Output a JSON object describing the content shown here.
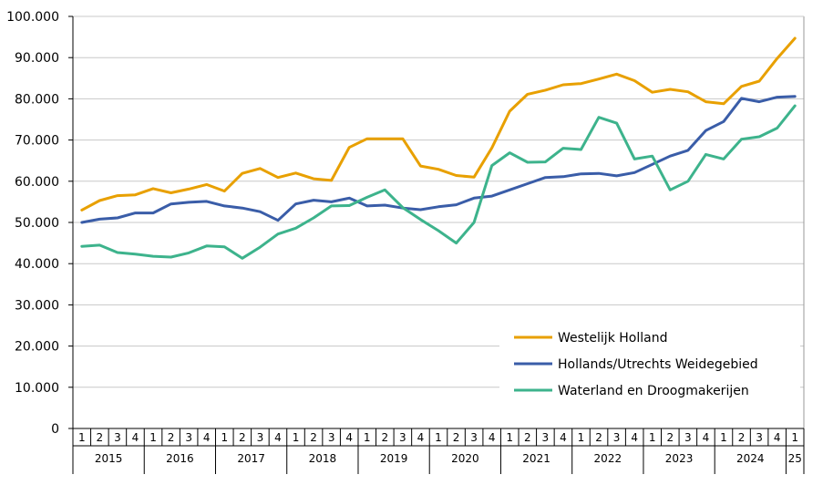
{
  "chart_data": {
    "type": "line",
    "title": "",
    "xlabel": "",
    "ylabel": "",
    "ylim": [
      0,
      100000
    ],
    "yticks": [
      "0",
      "10.000",
      "20.000",
      "30.000",
      "40.000",
      "50.000",
      "60.000",
      "70.000",
      "80.000",
      "90.000",
      "100.000"
    ],
    "grid": "horizontal",
    "legend_position": "bottom-right",
    "quarters": [
      "1",
      "2",
      "3",
      "4",
      "1",
      "2",
      "3",
      "4",
      "1",
      "2",
      "3",
      "4",
      "1",
      "2",
      "3",
      "4",
      "1",
      "2",
      "3",
      "4",
      "1",
      "2",
      "3",
      "4",
      "1",
      "2",
      "3",
      "4",
      "1",
      "2",
      "3",
      "4",
      "1",
      "2",
      "3",
      "4",
      "1",
      "2",
      "3",
      "4",
      "1"
    ],
    "years": [
      {
        "label": "2015",
        "span": 4
      },
      {
        "label": "2016",
        "span": 4
      },
      {
        "label": "2017",
        "span": 4
      },
      {
        "label": "2018",
        "span": 4
      },
      {
        "label": "2019",
        "span": 4
      },
      {
        "label": "2020",
        "span": 4
      },
      {
        "label": "2021",
        "span": 4
      },
      {
        "label": "2022",
        "span": 4
      },
      {
        "label": "2023",
        "span": 4
      },
      {
        "label": "2024",
        "span": 4
      },
      {
        "label": "25",
        "span": 1
      }
    ],
    "series": [
      {
        "name": "Westelijk Holland",
        "color": "#e8a000",
        "values": [
          53000,
          55300,
          56500,
          56700,
          58200,
          57200,
          58100,
          59200,
          57600,
          61900,
          63100,
          60900,
          62000,
          60600,
          60200,
          68200,
          70300,
          70300,
          70300,
          63700,
          62900,
          61400,
          61000,
          68100,
          77000,
          81100,
          82100,
          83400,
          83700,
          84800,
          86000,
          84400,
          81600,
          82300,
          81700,
          79300,
          78800,
          83000,
          84300,
          89800,
          94700
        ]
      },
      {
        "name": "Hollands/Utrechts Weidegebied",
        "color": "#3a5da8",
        "values": [
          50000,
          50800,
          51100,
          52300,
          52300,
          54500,
          54900,
          55100,
          54000,
          53500,
          52600,
          50500,
          54500,
          55400,
          55000,
          55900,
          54000,
          54200,
          53500,
          53100,
          53800,
          54300,
          55900,
          56400,
          57900,
          59400,
          60900,
          61100,
          61800,
          61900,
          61300,
          62100,
          64100,
          66100,
          67500,
          72300,
          74500,
          80100,
          79300,
          80400,
          80600
        ]
      },
      {
        "name": "Waterland en Droogmakerijen",
        "color": "#3db38c",
        "values": [
          44200,
          44500,
          42700,
          42300,
          41800,
          41600,
          42600,
          44300,
          44100,
          41300,
          44000,
          47200,
          48600,
          51100,
          54000,
          54100,
          56100,
          57900,
          53600,
          50700,
          48000,
          45000,
          50000,
          63800,
          66900,
          64600,
          64700,
          68000,
          67700,
          75500,
          74100,
          65400,
          66100,
          57900,
          60000,
          66500,
          65400,
          70200,
          70800,
          72900,
          78300
        ]
      }
    ]
  }
}
